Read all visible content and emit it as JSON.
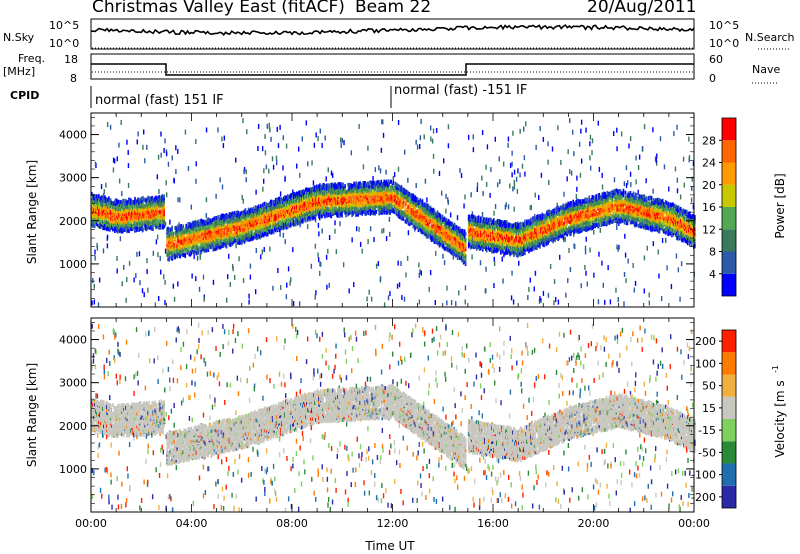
{
  "header": {
    "title": "Christmas Valley East (fitACF)",
    "beam": "Beam 22",
    "date": "20/Aug/2011"
  },
  "sky_panel": {
    "left_label": "N.Sky",
    "right_label": "N.Search",
    "left_ticks": [
      "10^5",
      "10^0"
    ],
    "right_ticks": [
      "10^5",
      "10^0"
    ]
  },
  "freq_panel": {
    "left_label_1": "Freq.",
    "left_label_2": "[MHz]",
    "left_ticks": [
      "18",
      "8"
    ],
    "right_ticks": [
      "60",
      "0"
    ],
    "right_label": "Nave"
  },
  "cpid": {
    "label": "CPID",
    "segments": [
      "normal (fast) 151 IF",
      "normal (fast) -151 IF"
    ]
  },
  "colors": {
    "power": [
      "#0000ff",
      "#2a5aa8",
      "#3a7a5a",
      "#52a852",
      "#c8c800",
      "#ff9a00",
      "#ff6600",
      "#ff0000"
    ],
    "velocity": [
      "#2a2aa8",
      "#1f6fb0",
      "#2a8a3a",
      "#7fd05f",
      "#c8c8c0",
      "#f0b040",
      "#ff7a00",
      "#ff2000"
    ]
  },
  "chart_data": [
    {
      "type": "heatmap",
      "panel": "power",
      "ylabel": "Slant Range [km]",
      "yticks": [
        "1000",
        "2000",
        "3000",
        "4000"
      ],
      "ylim": [
        0,
        4500
      ],
      "colorbar_label": "Power [dB]",
      "colorbar_ticks": [
        "4",
        "8",
        "12",
        "16",
        "20",
        "24",
        "28"
      ],
      "colorbar_range": [
        0,
        32
      ],
      "bands": [
        {
          "t": [
            0,
            1,
            2,
            2.9
          ],
          "range": [
            2300,
            2150,
            2200,
            2250
          ],
          "max_power": 24
        },
        {
          "t": [
            3,
            6,
            9,
            12,
            14.9
          ],
          "range": [
            1500,
            1900,
            2500,
            2600,
            1400
          ],
          "max_power": 24
        },
        {
          "t": [
            15,
            17,
            19,
            21,
            23,
            24
          ],
          "range": [
            1800,
            1600,
            2100,
            2400,
            2100,
            1800
          ],
          "max_power": 28
        }
      ]
    },
    {
      "type": "heatmap",
      "panel": "velocity",
      "ylabel": "Slant Range [km]",
      "yticks": [
        "1000",
        "2000",
        "3000",
        "4000"
      ],
      "ylim": [
        0,
        4500
      ],
      "xlabel": "Time UT",
      "xticks": [
        "00:00",
        "04:00",
        "08:00",
        "12:00",
        "16:00",
        "20:00",
        "00:00"
      ],
      "xlim": [
        0,
        24
      ],
      "colorbar_label": "Velocity [m s",
      "colorbar_exp": "-1",
      "colorbar_ticks": [
        "200",
        "100",
        "50",
        "15",
        "-15",
        "-50",
        "-100",
        "-200"
      ],
      "bands": [
        {
          "t": [
            0,
            1,
            2,
            2.9
          ],
          "range": [
            2300,
            2150,
            2200,
            2250
          ],
          "velocity": 0
        },
        {
          "t": [
            3,
            6,
            9,
            12,
            14.9
          ],
          "range": [
            1500,
            1900,
            2500,
            2600,
            1400
          ],
          "velocity": 0
        },
        {
          "t": [
            15,
            17,
            19,
            21,
            23,
            24
          ],
          "range": [
            1800,
            1600,
            2100,
            2400,
            2100,
            1800
          ],
          "velocity": 0
        }
      ]
    }
  ]
}
